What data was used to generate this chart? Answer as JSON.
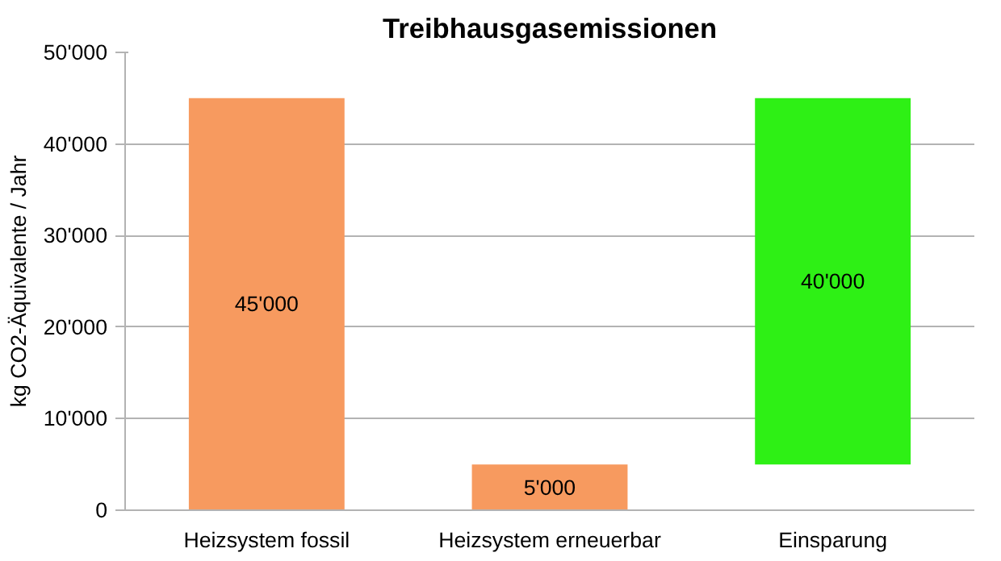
{
  "chart_data": {
    "type": "bar",
    "title": "Treibhausgasemissionen",
    "ylabel": "kg CO2-Äquivalente / Jahr",
    "categories": [
      "Heizsystem fossil",
      "Heizsystem erneuerbar",
      "Einsparung"
    ],
    "values": [
      45000,
      5000,
      40000
    ],
    "base": [
      0,
      0,
      5000
    ],
    "colors": [
      "#f79a5f",
      "#f79a5f",
      "#2ef015"
    ],
    "value_labels": [
      "45'000",
      "5'000",
      "40'000"
    ],
    "ylim": [
      0,
      50000
    ],
    "yticks": [
      {
        "value": 0,
        "label": "0"
      },
      {
        "value": 10000,
        "label": "10'000"
      },
      {
        "value": 20000,
        "label": "20'000"
      },
      {
        "value": 30000,
        "label": "30'000"
      },
      {
        "value": 40000,
        "label": "40'000"
      },
      {
        "value": 50000,
        "label": "50'000"
      }
    ],
    "grid": "y"
  }
}
